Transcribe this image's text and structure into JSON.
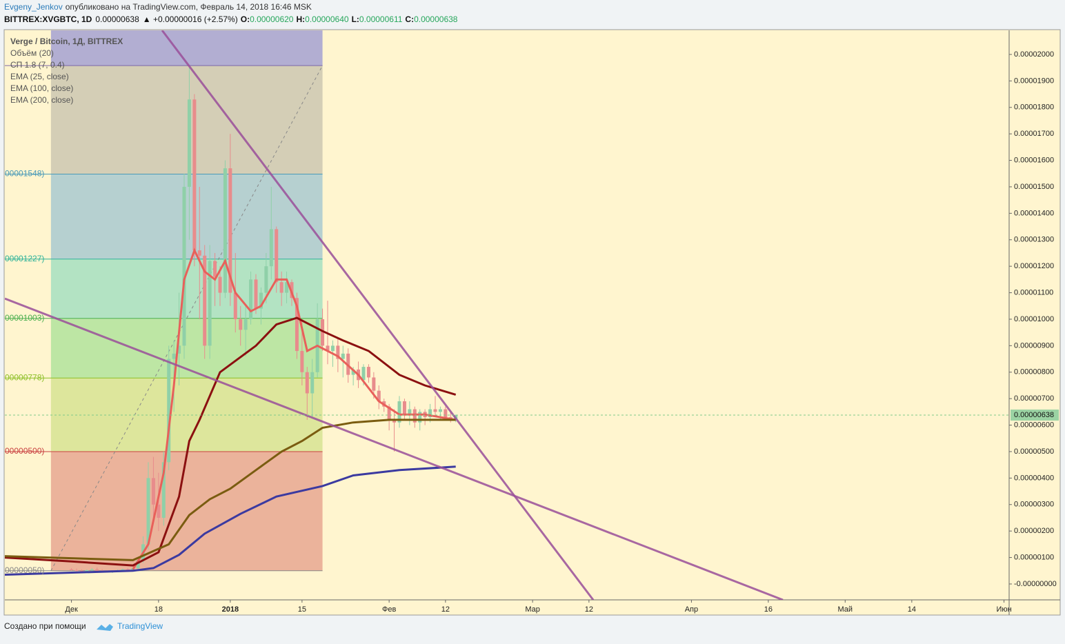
{
  "header": {
    "author": "Evgeny_Jenkov",
    "published": "опубликовано на TradingView.com, Февраль 14, 2018 16:46 MSK",
    "symbol": "BITTREX:XVGBTC, 1D",
    "price": "0.00000638",
    "change": "▲ +0.00000016 (+2.57%)",
    "o_label": "O:",
    "o": "0.00000620",
    "h_label": "H:",
    "h": "0.00000640",
    "l_label": "L:",
    "l": "0.00000611",
    "c_label": "C:",
    "c": "0.00000638"
  },
  "footer": {
    "text": "Создано при помощи",
    "brand": "TradingView"
  },
  "chart_data": {
    "type": "candlestick",
    "title": "Verge / Bitcoin, 1Д, BITTREX",
    "indicators": [
      "Объём (20)"
    ],
    "up_color": "#8fd0a8",
    "down_color": "#e88c8c",
    "x": [
      "2017-12-01",
      "2017-12-02",
      "2017-12-03",
      "2017-12-04",
      "2017-12-05",
      "2017-12-06",
      "2017-12-07",
      "2017-12-08",
      "2017-12-09",
      "2017-12-10",
      "2017-12-11",
      "2017-12-12",
      "2017-12-13",
      "2017-12-14",
      "2017-12-15",
      "2017-12-16",
      "2017-12-17",
      "2017-12-18",
      "2017-12-19",
      "2017-12-20",
      "2017-12-21",
      "2017-12-22",
      "2017-12-23",
      "2017-12-24",
      "2017-12-25",
      "2017-12-26",
      "2017-12-27",
      "2017-12-28",
      "2017-12-29",
      "2017-12-30",
      "2017-12-31",
      "2018-01-01",
      "2018-01-02",
      "2018-01-03",
      "2018-01-04",
      "2018-01-05",
      "2018-01-06",
      "2018-01-07",
      "2018-01-08",
      "2018-01-09",
      "2018-01-10",
      "2018-01-11",
      "2018-01-12",
      "2018-01-13",
      "2018-01-14",
      "2018-01-15",
      "2018-01-16",
      "2018-01-17",
      "2018-01-18",
      "2018-01-19",
      "2018-01-20",
      "2018-01-21",
      "2018-01-22",
      "2018-01-23",
      "2018-01-24",
      "2018-01-25",
      "2018-01-26",
      "2018-01-27",
      "2018-01-28",
      "2018-01-29",
      "2018-01-30",
      "2018-01-31",
      "2018-02-01",
      "2018-02-02",
      "2018-02-03",
      "2018-02-04",
      "2018-02-05",
      "2018-02-06",
      "2018-02-07",
      "2018-02-08",
      "2018-02-09",
      "2018-02-10",
      "2018-02-11",
      "2018-02-12",
      "2018-02-13",
      "2018-02-14"
    ],
    "open": [
      5.5e-07,
      5.2e-07,
      5e-07,
      4.8e-07,
      5.2e-07,
      5.5e-07,
      5e-07,
      4.7e-07,
      4.6e-07,
      4.8e-07,
      5e-07,
      5.5e-07,
      5.2e-07,
      6e-07,
      9e-07,
      1.5e-06,
      4e-06,
      3e-06,
      2.5e-06,
      4.6e-06,
      8.5e-06,
      8.7e-06,
      9e-06,
      1.5e-05,
      1.83e-05,
      1.26e-05,
      1.24e-05,
      9e-06,
      1.22e-05,
      1.16e-05,
      1.1e-05,
      1.57e-05,
      1.1e-05,
      1e-05,
      9.6e-06,
      1e-05,
      1.15e-05,
      1.04e-05,
      1.1e-05,
      1.2e-05,
      1.34e-05,
      1.14e-05,
      1.1e-05,
      1.14e-05,
      1.08e-05,
      8.8e-06,
      8e-06,
      7.2e-06,
      8e-06,
      1e-05,
      9e-06,
      8.8e-06,
      9e-06,
      8.5e-06,
      8.7e-06,
      7.9e-06,
      8.1e-06,
      7.7e-06,
      8.2e-06,
      7.8e-06,
      7.3e-06,
      6.9e-06,
      6.7e-06,
      6.2e-06,
      6.1e-06,
      6.9e-06,
      6.4e-06,
      6.6e-06,
      6.1e-06,
      6.5e-06,
      6.3e-06,
      6.6e-06,
      6.5e-06,
      6.6e-06,
      6.3e-06,
      6.2e-06
    ],
    "high": [
      6e-07,
      5.8e-07,
      5.5e-07,
      5.5e-07,
      6e-07,
      6.2e-07,
      5.6e-07,
      5.2e-07,
      5e-07,
      5.5e-07,
      5.8e-07,
      6e-07,
      6.2e-07,
      1e-06,
      1.8e-06,
      4.6e-06,
      4.8e-06,
      4.2e-06,
      5e-06,
      9e-06,
      9.2e-06,
      1.1e-05,
      1.55e-05,
      1.95e-05,
      1.85e-05,
      1.5e-05,
      1.28e-05,
      1.28e-05,
      1.25e-05,
      1.2e-05,
      1.6e-05,
      1.7e-05,
      1.25e-05,
      1.05e-05,
      1.05e-05,
      1.18e-05,
      1.17e-05,
      1.12e-05,
      1.25e-05,
      1.5e-05,
      1.35e-05,
      1.18e-05,
      1.18e-05,
      1.15e-05,
      1.1e-05,
      1e-05,
      8.2e-06,
      8.5e-06,
      1.06e-05,
      1.04e-05,
      1.07e-05,
      9.2e-06,
      9.3e-06,
      9e-06,
      8.9e-06,
      8.2e-06,
      8.4e-06,
      8.3e-06,
      8.3e-06,
      8e-06,
      7.5e-06,
      7e-06,
      6.8e-06,
      6.6e-06,
      7.1e-06,
      7e-06,
      6.9e-06,
      6.7e-06,
      6.6e-06,
      6.6e-06,
      6.8e-06,
      7.1e-06,
      6.7e-06,
      6.7e-06,
      6.5e-06,
      6.4e-06
    ],
    "low": [
      5e-07,
      4.8e-07,
      4.7e-07,
      4.5e-07,
      5e-07,
      5e-07,
      4.6e-07,
      4.4e-07,
      4.2e-07,
      4.5e-07,
      4.7e-07,
      5e-07,
      5e-07,
      5.5e-07,
      8e-07,
      1.3e-06,
      2.5e-06,
      2e-06,
      2.2e-06,
      4.3e-06,
      6.5e-06,
      7.5e-06,
      8.5e-06,
      1.3e-05,
      1.2e-05,
      1e-05,
      8.5e-06,
      8.5e-06,
      1.05e-05,
      1.05e-05,
      1.08e-05,
      1.05e-05,
      9.5e-06,
      9e-06,
      8.6e-06,
      9.8e-06,
      1.02e-05,
      9.8e-06,
      1.06e-05,
      1.15e-05,
      1.1e-05,
      1.05e-05,
      1.06e-05,
      1.05e-05,
      8.5e-06,
      7.5e-06,
      6.2e-06,
      6.3e-06,
      7.8e-06,
      8.8e-06,
      8.3e-06,
      8.2e-06,
      8e-06,
      7.8e-06,
      7.6e-06,
      7.5e-06,
      7.4e-06,
      7.5e-06,
      7.6e-06,
      7e-06,
      6.6e-06,
      6.5e-06,
      5.8e-06,
      5e-06,
      5.9e-06,
      6.2e-06,
      6e-06,
      5.9e-06,
      5.8e-06,
      6e-06,
      6.1e-06,
      6.3e-06,
      6.2e-06,
      6.2e-06,
      6.1e-06,
      6.11e-06
    ],
    "close": [
      5.2e-07,
      5e-07,
      4.8e-07,
      5.2e-07,
      5.5e-07,
      5e-07,
      4.7e-07,
      4.6e-07,
      4.8e-07,
      5e-07,
      5.5e-07,
      5.2e-07,
      6e-07,
      9e-07,
      1.5e-06,
      4e-06,
      3e-06,
      2.5e-06,
      4.6e-06,
      8.5e-06,
      8.7e-06,
      9e-06,
      1.5e-05,
      1.83e-05,
      1.26e-05,
      1.24e-05,
      9e-06,
      1.22e-05,
      1.16e-05,
      1.1e-05,
      1.57e-05,
      1.1e-05,
      1e-05,
      9.6e-06,
      1e-05,
      1.15e-05,
      1.04e-05,
      1.1e-05,
      1.2e-05,
      1.34e-05,
      1.14e-05,
      1.1e-05,
      1.14e-05,
      1.08e-05,
      8.8e-06,
      8e-06,
      7.2e-06,
      8e-06,
      1e-05,
      9e-06,
      8.8e-06,
      9e-06,
      8.5e-06,
      8.7e-06,
      7.9e-06,
      8.1e-06,
      7.7e-06,
      8.2e-06,
      7.8e-06,
      7.3e-06,
      6.9e-06,
      6.7e-06,
      6.2e-06,
      6.1e-06,
      6.9e-06,
      6.4e-06,
      6.6e-06,
      6.1e-06,
      6.5e-06,
      6.3e-06,
      6.6e-06,
      6.5e-06,
      6.6e-06,
      6.3e-06,
      6.2e-06,
      6.38e-06
    ],
    "series": [
      {
        "name": "СП 1.8 (7, 0.4)",
        "color": "#e8605a",
        "x": [
          "2017-12-13",
          "2017-12-16",
          "2017-12-19",
          "2017-12-21",
          "2017-12-23",
          "2017-12-25",
          "2017-12-27",
          "2017-12-29",
          "2017-12-31",
          "2018-01-02",
          "2018-01-05",
          "2018-01-07",
          "2018-01-10",
          "2018-01-12",
          "2018-01-14",
          "2018-01-16",
          "2018-01-18",
          "2018-01-22",
          "2018-01-26",
          "2018-01-30",
          "2018-02-03",
          "2018-02-08",
          "2018-02-14"
        ],
        "values": [
          5.5e-07,
          1.5e-06,
          4.2e-06,
          7.5e-06,
          1.15e-05,
          1.26e-05,
          1.18e-05,
          1.15e-05,
          1.22e-05,
          1.1e-05,
          1.03e-05,
          1.05e-05,
          1.15e-05,
          1.15e-05,
          1.05e-05,
          8.8e-06,
          9e-06,
          8.6e-06,
          7.9e-06,
          6.9e-06,
          6.4e-06,
          6.4e-06,
          6.2e-06
        ]
      },
      {
        "name": "EMA (25, close)",
        "color": "#8b1010",
        "x": [
          "2017-11-18",
          "2017-12-01",
          "2017-12-13",
          "2017-12-18",
          "2017-12-22",
          "2017-12-24",
          "2017-12-26",
          "2017-12-30",
          "2018-01-06",
          "2018-01-10",
          "2018-01-14",
          "2018-01-19",
          "2018-01-23",
          "2018-01-28",
          "2018-02-03",
          "2018-02-08",
          "2018-02-14"
        ],
        "values": [
          1e-06,
          8.5e-07,
          7e-07,
          1.2e-06,
          3.3e-06,
          5.4e-06,
          6.2e-06,
          8e-06,
          9e-06,
          9.8e-06,
          1.005e-05,
          9.55e-06,
          9.2e-06,
          8.8e-06,
          7.9e-06,
          7.5e-06,
          7.15e-06
        ]
      },
      {
        "name": "EMA (100, close)",
        "color": "#7a5c10",
        "x": [
          "2017-11-18",
          "2017-12-13",
          "2017-12-20",
          "2017-12-24",
          "2017-12-28",
          "2018-01-01",
          "2018-01-06",
          "2018-01-11",
          "2018-01-15",
          "2018-01-19",
          "2018-01-25",
          "2018-02-01",
          "2018-02-14"
        ],
        "values": [
          1.05e-06,
          9e-07,
          1.5e-06,
          2.6e-06,
          3.2e-06,
          3.6e-06,
          4.3e-06,
          5e-06,
          5.4e-06,
          5.9e-06,
          6.1e-06,
          6.2e-06,
          6.2e-06
        ]
      },
      {
        "name": "EMA (200, close)",
        "color": "#3b3aa0",
        "x": [
          "2017-11-18",
          "2017-12-13",
          "2017-12-17",
          "2017-12-22",
          "2017-12-27",
          "2018-01-03",
          "2018-01-10",
          "2018-01-19",
          "2018-01-25",
          "2018-02-03",
          "2018-02-14"
        ],
        "values": [
          3.5e-07,
          5e-07,
          6e-07,
          1.1e-06,
          1.9e-06,
          2.65e-06,
          3.3e-06,
          3.7e-06,
          4.1e-06,
          4.3e-06,
          4.43e-06
        ]
      }
    ],
    "fib_range": [
      "2017-11-27",
      "2018-01-19"
    ],
    "fib_levels": [
      {
        "value": 1.958e-05,
        "label": null,
        "color": "#7b68a8",
        "fill": "#b2aed2"
      },
      {
        "value": 1.548e-05,
        "label": "00001548)",
        "color": "#4a9ab8",
        "fill": "#d4ceb6"
      },
      {
        "value": 1.227e-05,
        "label": "00001227)",
        "color": "#2fb39a",
        "fill": "#b6d0d0"
      },
      {
        "value": 1.003e-05,
        "label": "00001003)",
        "color": "#4caf50",
        "fill": "#b3e3c3"
      },
      {
        "value": 7.78e-06,
        "label": "00000778)",
        "color": "#8cbf26",
        "fill": "#bde6a4"
      },
      {
        "value": 5e-06,
        "label": "00000500)",
        "color": "#c94040",
        "fill": "#dde69c"
      },
      {
        "value": 5e-07,
        "label": "00000050)",
        "color": "#888888",
        "fill": "#ebb39b"
      }
    ],
    "fib_top_fill": "#b2aed2",
    "last_price": {
      "value": 6.38e-06,
      "label": "0.00000638"
    },
    "ylim": [
      -6e-07,
      2.091e-05
    ],
    "yticks": [
      {
        "value": 2e-05,
        "label": "0.00002000"
      },
      {
        "value": 1.9e-05,
        "label": "0.00001900"
      },
      {
        "value": 1.8e-05,
        "label": "0.00001800"
      },
      {
        "value": 1.7e-05,
        "label": "0.00001700"
      },
      {
        "value": 1.6e-05,
        "label": "0.00001600"
      },
      {
        "value": 1.5e-05,
        "label": "0.00001500"
      },
      {
        "value": 1.4e-05,
        "label": "0.00001400"
      },
      {
        "value": 1.3e-05,
        "label": "0.00001300"
      },
      {
        "value": 1.2e-05,
        "label": "0.00001200"
      },
      {
        "value": 1.1e-05,
        "label": "0.00001100"
      },
      {
        "value": 1e-05,
        "label": "0.00001000"
      },
      {
        "value": 9e-06,
        "label": "0.00000900"
      },
      {
        "value": 8e-06,
        "label": "0.00000800"
      },
      {
        "value": 7e-06,
        "label": "0.00000700"
      },
      {
        "value": 6e-06,
        "label": "0.00000600"
      },
      {
        "value": 5e-06,
        "label": "0.00000500"
      },
      {
        "value": 4e-06,
        "label": "0.00000400"
      },
      {
        "value": 3e-06,
        "label": "0.00000300"
      },
      {
        "value": 2e-06,
        "label": "0.00000200"
      },
      {
        "value": 1e-06,
        "label": "0.00000100"
      },
      {
        "value": 0,
        "label": "-0.00000000"
      }
    ],
    "xlim": [
      "2017-11-18",
      "2018-06-02"
    ],
    "xticks": [
      {
        "value": "2017-12-01",
        "label": "Дек"
      },
      {
        "value": "2017-12-18",
        "label": "18"
      },
      {
        "value": "2018-01-01",
        "label": "2018"
      },
      {
        "value": "2018-01-15",
        "label": "15"
      },
      {
        "value": "2018-02-01",
        "label": "Фев"
      },
      {
        "value": "2018-02-12",
        "label": "12"
      },
      {
        "value": "2018-03-01",
        "label": "Мар"
      },
      {
        "value": "2018-03-12",
        "label": "12"
      },
      {
        "value": "2018-04-01",
        "label": "Апр"
      },
      {
        "value": "2018-04-16",
        "label": "16"
      },
      {
        "value": "2018-05-01",
        "label": "Май"
      },
      {
        "value": "2018-05-14",
        "label": "14"
      },
      {
        "value": "2018-06-01",
        "label": "Июн"
      }
    ]
  }
}
